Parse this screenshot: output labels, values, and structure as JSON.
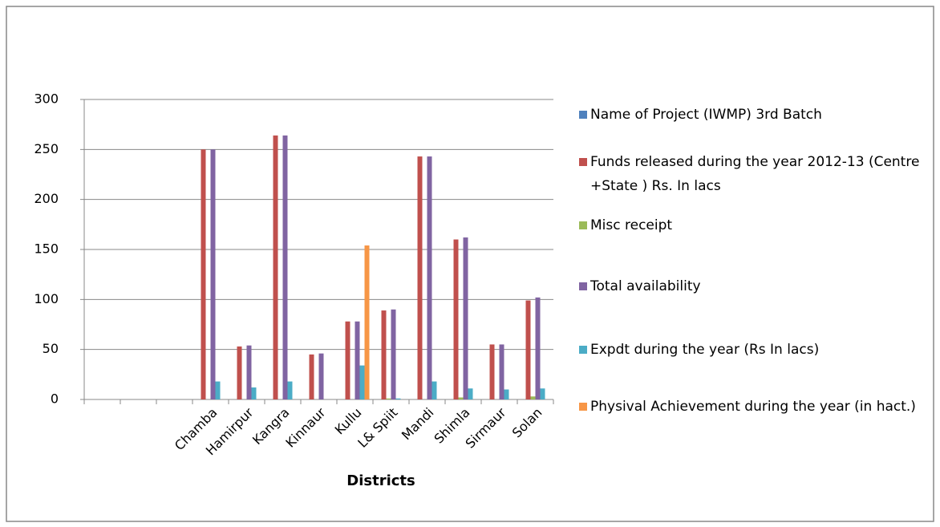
{
  "chart_data": {
    "type": "bar",
    "x_label": "Districts",
    "categories": [
      null,
      null,
      null,
      "Chamba",
      "Hamirpur",
      "Kangra",
      "Kinnaur",
      "Kullu",
      "L& Spiit",
      "Mandi",
      "Shimla",
      "Sirmaur",
      "Solan"
    ],
    "series": [
      {
        "name": "Name of Project (IWMP) 3rd  Batch",
        "color": "#4f81bd",
        "values": [
          null,
          null,
          null,
          null,
          null,
          null,
          null,
          null,
          null,
          null,
          null,
          null,
          null
        ]
      },
      {
        "name": "Funds released during the year 2012-13 (Centre +State ) Rs. In lacs",
        "color": "#c0504d",
        "values": [
          null,
          null,
          null,
          250,
          53,
          264,
          45,
          78,
          89,
          243,
          160,
          55,
          99
        ]
      },
      {
        "name": "Misc receipt",
        "color": "#9bbb59",
        "values": [
          null,
          null,
          null,
          0,
          0,
          0,
          0,
          0,
          1,
          0,
          2,
          0,
          3
        ]
      },
      {
        "name": "Total availability",
        "color": "#8064a2",
        "values": [
          null,
          null,
          null,
          250,
          54,
          264,
          46,
          78,
          90,
          243,
          162,
          55,
          102
        ]
      },
      {
        "name": "Expdt during the year (Rs In lacs)",
        "color": "#4bacc6",
        "values": [
          null,
          null,
          null,
          18,
          12,
          18,
          0,
          34,
          1,
          18,
          11,
          10,
          11
        ]
      },
      {
        "name": "Physival Achievement during the year (in hact.)",
        "color": "#f79646",
        "values": [
          null,
          null,
          null,
          0,
          0,
          0,
          0,
          154,
          0,
          0,
          0,
          0,
          0
        ]
      }
    ],
    "ylim": [
      0,
      300
    ],
    "yticks": [
      0,
      50,
      100,
      150,
      200,
      250,
      300
    ],
    "grid": true,
    "legend": "right"
  }
}
